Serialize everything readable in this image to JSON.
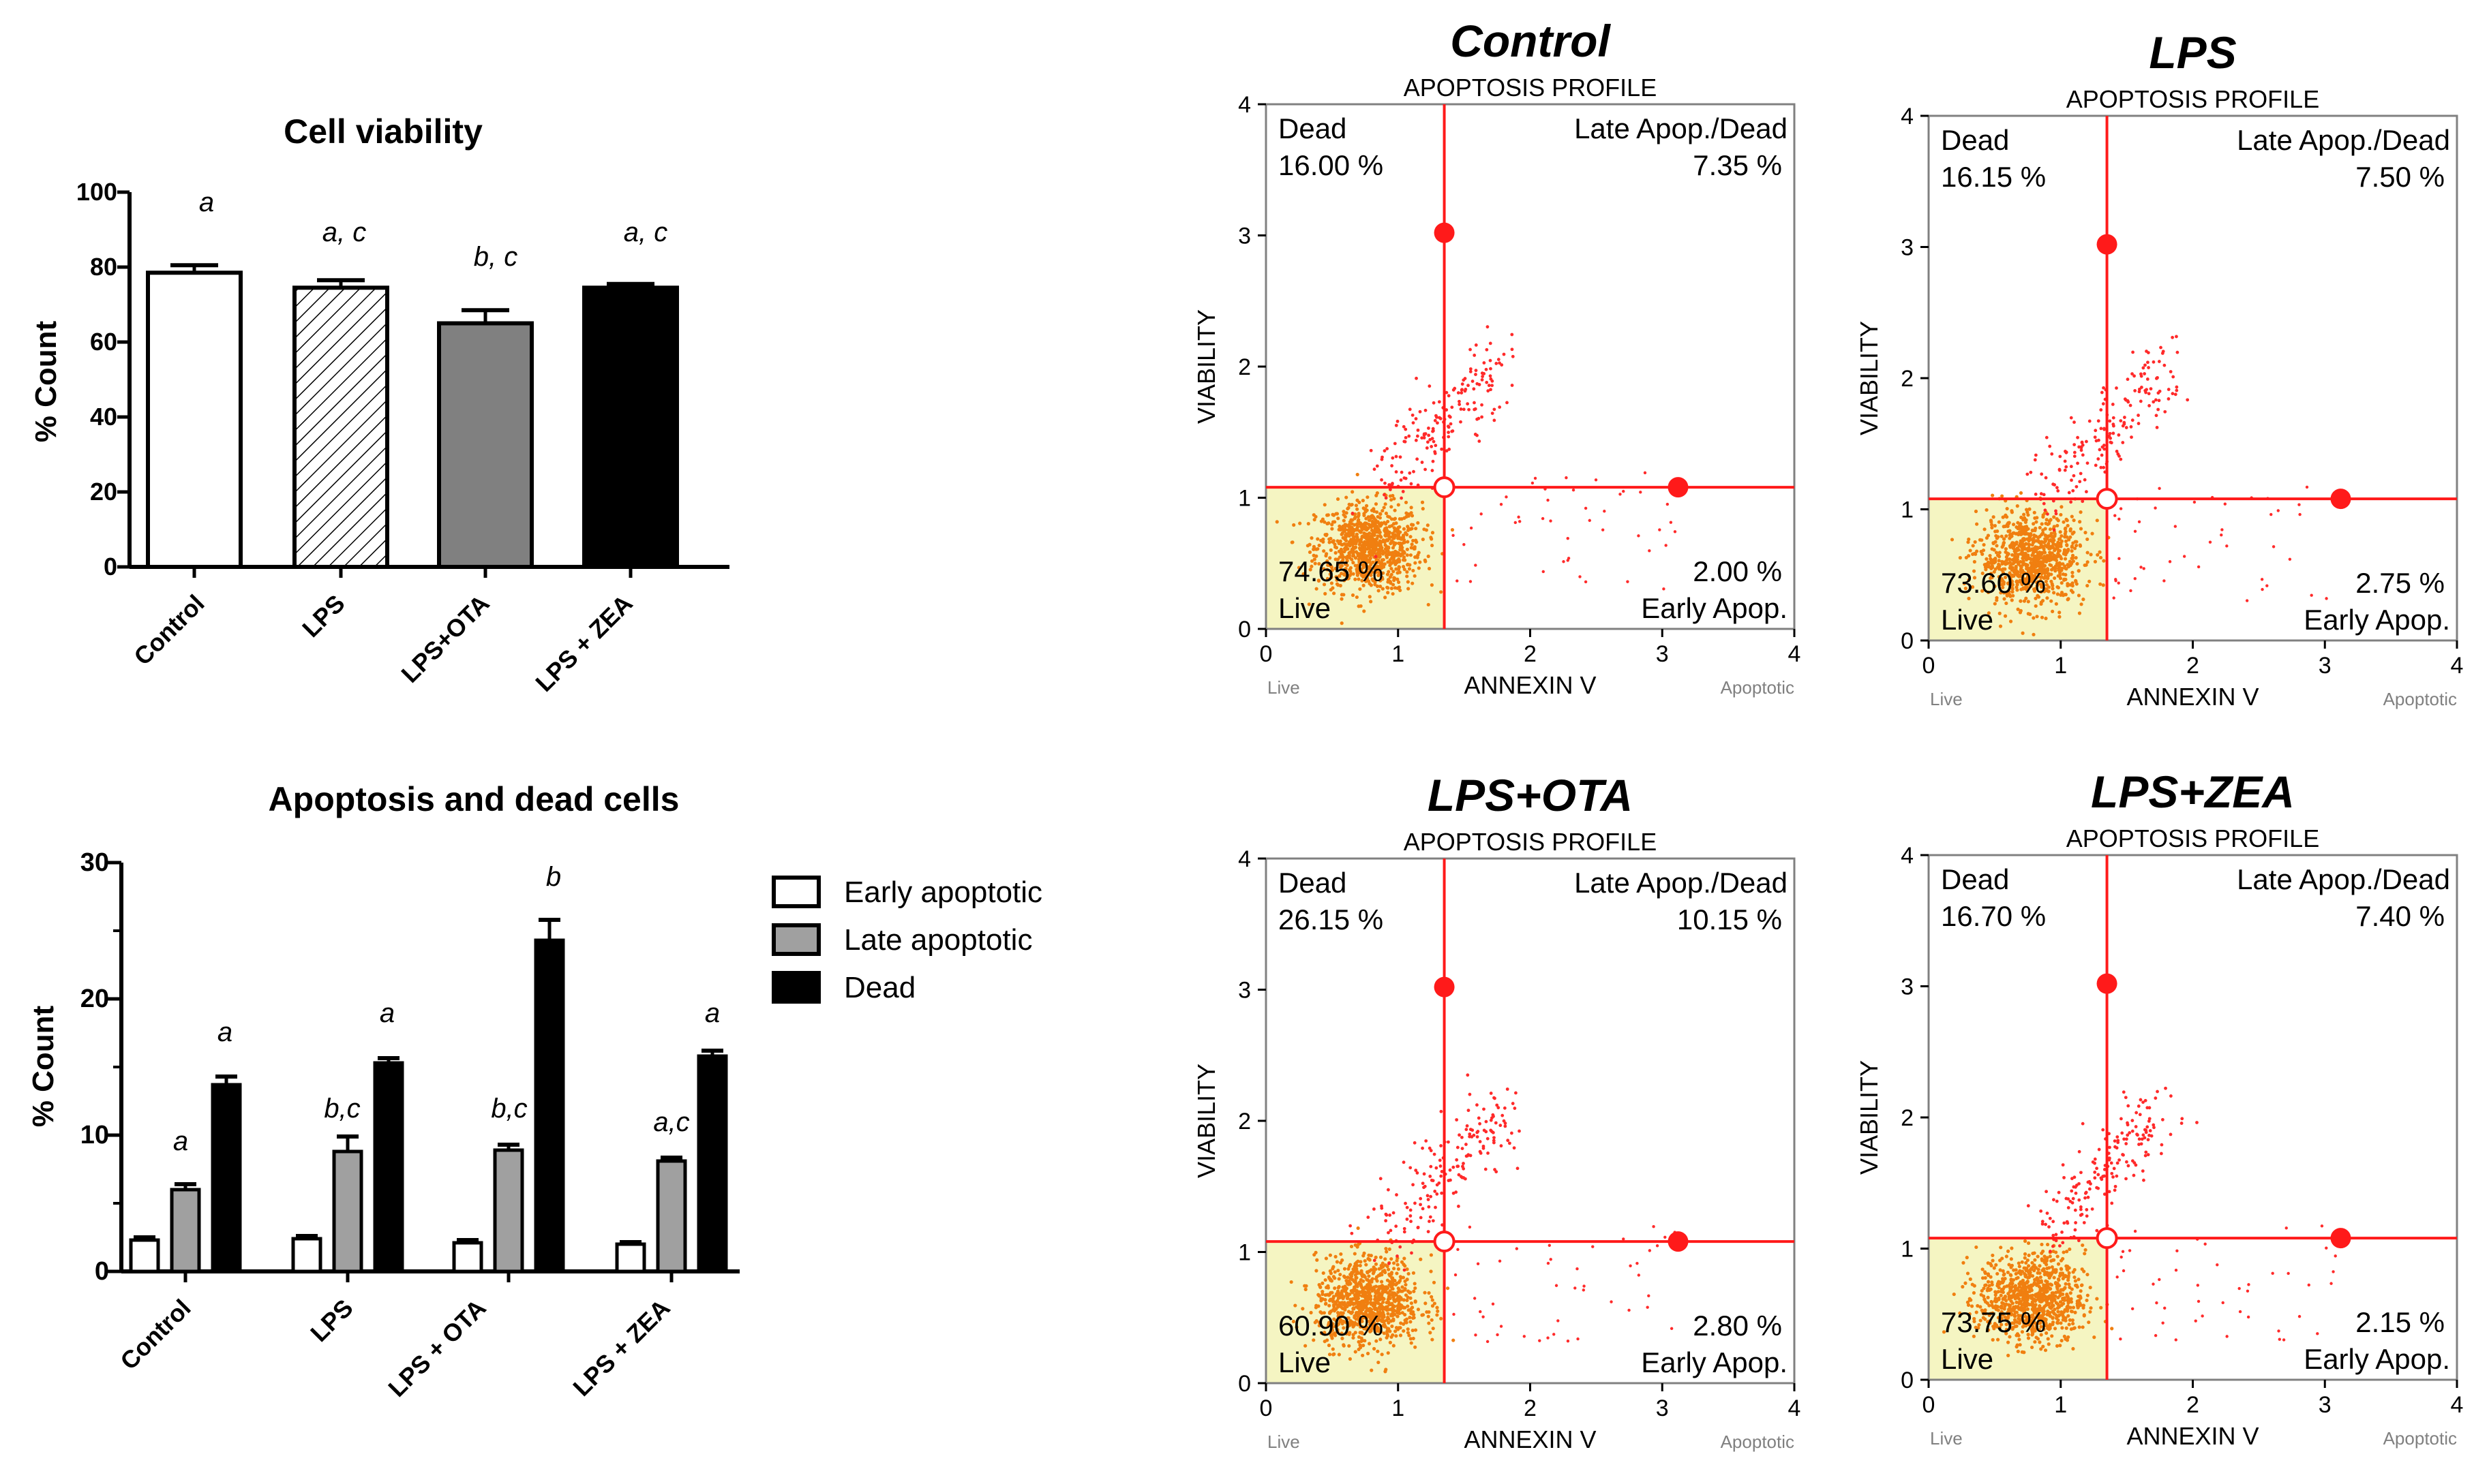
{
  "chart_data": [
    {
      "type": "bar",
      "title": "Cell viability",
      "ylabel": "% Count",
      "ylim": [
        0,
        100
      ],
      "yticks": [
        "0",
        "20",
        "40",
        "60",
        "80",
        "100"
      ],
      "categories": [
        "Control",
        "LPS",
        "LPS+OTA",
        "LPS + ZEA"
      ],
      "values": [
        78.5,
        74.5,
        65,
        74.5
      ],
      "errors": [
        2,
        2,
        3.5,
        1
      ],
      "fills": [
        "#ffffff",
        "hatch",
        "#808080",
        "#000000"
      ],
      "letters": [
        "a",
        "a, c",
        "b, c",
        "a, c"
      ]
    },
    {
      "type": "bar",
      "title": "Apoptosis and dead cells",
      "ylabel": "% Count",
      "ylim": [
        0,
        30
      ],
      "yticks": [
        "0",
        "10",
        "20",
        "30"
      ],
      "categories": [
        "Control",
        "LPS",
        "LPS + OTA",
        "LPS + ZEA"
      ],
      "legend_position": "right",
      "series": [
        {
          "name": "Early apoptotic",
          "color": "#ffffff",
          "values": [
            2.3,
            2.4,
            2.1,
            2.0
          ],
          "errors": [
            0.2,
            0.2,
            0.2,
            0.15
          ],
          "letters": [
            "",
            "",
            "",
            ""
          ]
        },
        {
          "name": "Late apoptotic",
          "color": "#a0a0a0",
          "values": [
            6.0,
            8.8,
            8.9,
            8.1
          ],
          "errors": [
            0.4,
            1.1,
            0.4,
            0.25
          ],
          "letters": [
            "a",
            "b,c",
            "b,c",
            "a,c"
          ]
        },
        {
          "name": "Dead",
          "color": "#000000",
          "values": [
            13.7,
            15.3,
            24.3,
            15.8
          ],
          "errors": [
            0.6,
            0.35,
            1.5,
            0.4
          ],
          "letters": [
            "a",
            "a",
            "b",
            "a"
          ]
        }
      ]
    },
    {
      "type": "scatter",
      "panel_title": "Control",
      "subtitle": "APOPTOSIS PROFILE",
      "xlabel": "ANNEXIN V",
      "ylabel": "VIABILITY",
      "xlim": [
        0,
        4
      ],
      "ylim": [
        0,
        4
      ],
      "ticks": [
        "0",
        "1",
        "2",
        "3",
        "4"
      ],
      "x_end_labels": [
        "Live",
        "Apoptotic"
      ],
      "gates": {
        "x": 1.35,
        "y": 1.08
      },
      "quadrants": {
        "dead_label": "Dead",
        "dead_pct": "16.00 %",
        "late_label": "Late Apop./Dead",
        "late_pct": "7.35 %",
        "live_label": "Live",
        "live_pct": "74.65 %",
        "early_label": "Early Apop.",
        "early_pct": "2.00 %"
      }
    },
    {
      "type": "scatter",
      "panel_title": "LPS",
      "subtitle": "APOPTOSIS PROFILE",
      "xlabel": "ANNEXIN V",
      "ylabel": "VIABILITY",
      "xlim": [
        0,
        4
      ],
      "ylim": [
        0,
        4
      ],
      "ticks": [
        "0",
        "1",
        "2",
        "3",
        "4"
      ],
      "x_end_labels": [
        "Live",
        "Apoptotic"
      ],
      "gates": {
        "x": 1.35,
        "y": 1.08
      },
      "quadrants": {
        "dead_label": "Dead",
        "dead_pct": "16.15 %",
        "late_label": "Late Apop./Dead",
        "late_pct": "7.50 %",
        "live_label": "Live",
        "live_pct": "73.60 %",
        "early_label": "Early Apop.",
        "early_pct": "2.75 %"
      }
    },
    {
      "type": "scatter",
      "panel_title": "LPS+OTA",
      "subtitle": "APOPTOSIS PROFILE",
      "xlabel": "ANNEXIN V",
      "ylabel": "VIABILITY",
      "xlim": [
        0,
        4
      ],
      "ylim": [
        0,
        4
      ],
      "ticks": [
        "0",
        "1",
        "2",
        "3",
        "4"
      ],
      "x_end_labels": [
        "Live",
        "Apoptotic"
      ],
      "gates": {
        "x": 1.35,
        "y": 1.08
      },
      "quadrants": {
        "dead_label": "Dead",
        "dead_pct": "26.15 %",
        "late_label": "Late Apop./Dead",
        "late_pct": "10.15 %",
        "live_label": "Live",
        "live_pct": "60.90 %",
        "early_label": "Early Apop.",
        "early_pct": "2.80 %"
      }
    },
    {
      "type": "scatter",
      "panel_title": "LPS+ZEA",
      "subtitle": "APOPTOSIS PROFILE",
      "xlabel": "ANNEXIN V",
      "ylabel": "VIABILITY",
      "xlim": [
        0,
        4
      ],
      "ylim": [
        0,
        4
      ],
      "ticks": [
        "0",
        "1",
        "2",
        "3",
        "4"
      ],
      "x_end_labels": [
        "Live",
        "Apoptotic"
      ],
      "gates": {
        "x": 1.35,
        "y": 1.08
      },
      "quadrants": {
        "dead_label": "Dead",
        "dead_pct": "16.70 %",
        "late_label": "Late Apop./Dead",
        "late_pct": "7.40 %",
        "live_label": "Live",
        "live_pct": "73.75 %",
        "early_label": "Early Apop.",
        "early_pct": "2.15 %"
      }
    }
  ]
}
